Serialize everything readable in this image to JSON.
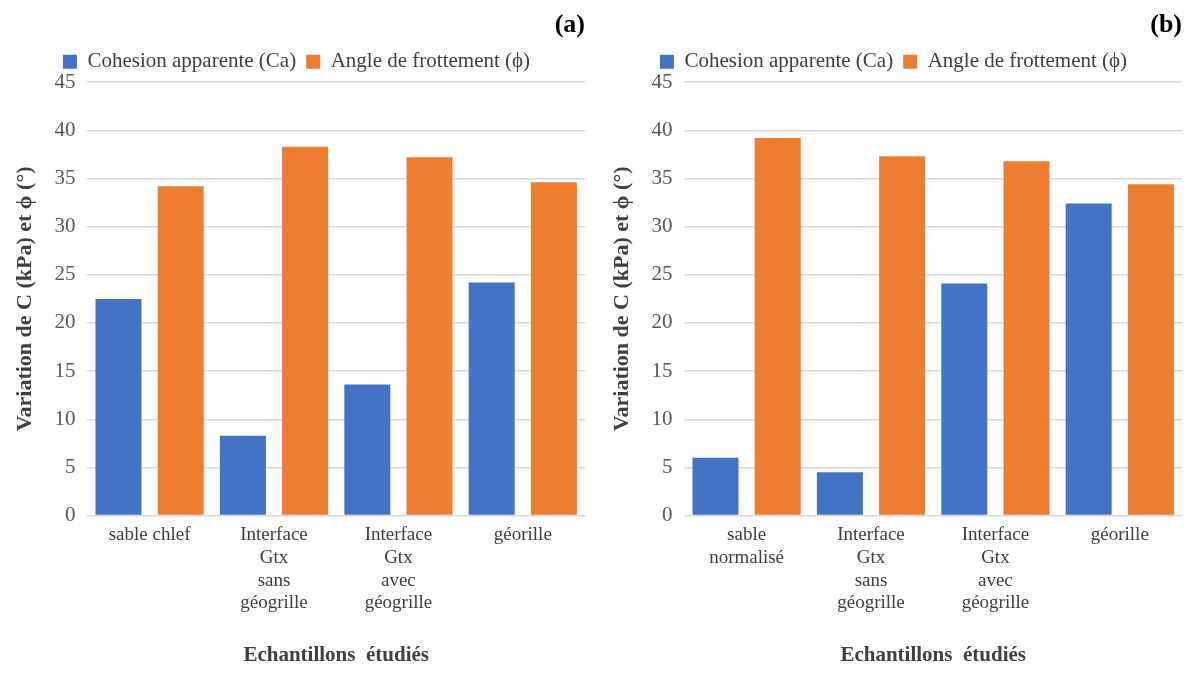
{
  "chart_data": [
    {
      "type": "bar",
      "title": "(a)",
      "xlabel": "Echantillons  étudiés",
      "ylabel": "Variation de C (kPa) et ϕ (°)",
      "categories": [
        "sable chlef",
        "Interface\nGtx\nsans\ngéogrille",
        "Interface\nGtx\navec\ngéogrille",
        "géorille"
      ],
      "series": [
        {
          "name": "Cohesion apparente (Ca)",
          "color": "#4472c4",
          "values": [
            22.5,
            8.3,
            13.6,
            24.2
          ]
        },
        {
          "name": "Angle de frottement (ϕ)",
          "color": "#ed7d31",
          "values": [
            34.2,
            38.3,
            37.2,
            34.6
          ]
        }
      ],
      "ylim": [
        0,
        45
      ],
      "yticks": [
        0,
        5,
        10,
        15,
        20,
        25,
        30,
        35,
        40,
        45
      ],
      "grid": "y",
      "legend": "top"
    },
    {
      "type": "bar",
      "title": "(b)",
      "xlabel": "Echantillons  étudiés",
      "ylabel": "Variation de C (kPa) et ϕ (°)",
      "categories": [
        "sable\nnormalisé",
        "Interface\nGtx\nsans\ngéogrille",
        "Interface\nGtx\navec\ngéogrille",
        "géorille"
      ],
      "series": [
        {
          "name": "Cohesion apparente (Ca)",
          "color": "#4472c4",
          "values": [
            6.0,
            4.5,
            24.1,
            32.4
          ]
        },
        {
          "name": "Angle de frottement (ϕ)",
          "color": "#ed7d31",
          "values": [
            39.2,
            37.3,
            36.8,
            34.4
          ]
        }
      ],
      "ylim": [
        0,
        45
      ],
      "yticks": [
        0,
        5,
        10,
        15,
        20,
        25,
        30,
        35,
        40,
        45
      ],
      "grid": "y",
      "legend": "top"
    }
  ]
}
